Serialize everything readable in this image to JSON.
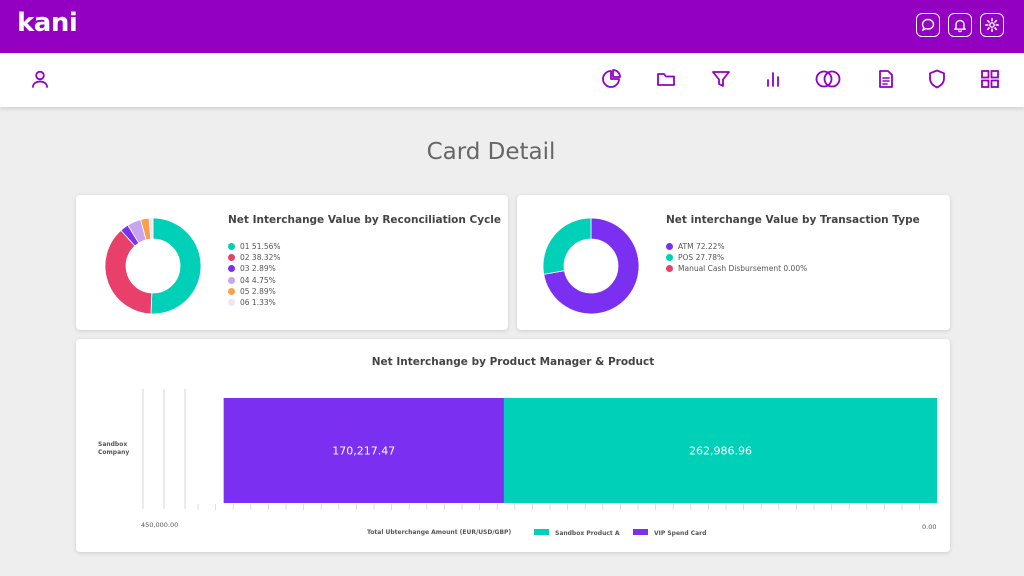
{
  "app": {
    "logo": "kani",
    "top_icons": [
      "chat-icon",
      "bell-icon",
      "gear-icon"
    ],
    "nav_icons": [
      "user-icon",
      "pie-chart-icon",
      "folder-icon",
      "filter-icon",
      "bar-chart-icon",
      "cards-icon",
      "document-icon",
      "shield-icon",
      "grid-icon"
    ]
  },
  "page": {
    "title": "Card Detail"
  },
  "colors": {
    "brand": "#9400c2",
    "teal": "#00d0b7",
    "purple": "#7b2ff0",
    "pink": "#e83f6b",
    "lavender": "#c9a4ef",
    "orange": "#f8a14a",
    "pale": "#efe3f7"
  },
  "cycle_chart": {
    "title": "Net Interchange Value by Reconciliation Cycle",
    "legend": [
      {
        "label": "01 51.56%",
        "color": "#00d0b7"
      },
      {
        "label": "02 38.32%",
        "color": "#e83f6b"
      },
      {
        "label": "03 2.89%",
        "color": "#7b2ff0"
      },
      {
        "label": "04 4.75%",
        "color": "#c9a4ef"
      },
      {
        "label": "05 2.89%",
        "color": "#f8a14a"
      },
      {
        "label": "06 1.33%",
        "color": "#efe3f7"
      }
    ]
  },
  "type_chart": {
    "title": "Net interchange Value by Transaction Type",
    "legend": [
      {
        "label": "ATM 72.22%",
        "color": "#7b2ff0"
      },
      {
        "label": "POS 27.78%",
        "color": "#00d0b7"
      },
      {
        "label": "Manual Cash Disbursement 0.00%",
        "color": "#e83f6b"
      }
    ]
  },
  "product_chart": {
    "title": "Net Interchange by Product Manager & Product",
    "category_line1": "Sandbox",
    "category_line2": "Company",
    "x_min_label": "450,000.00",
    "x_max_label": "0.00",
    "x_axis_label": "Total Ubterchange Amount (EUR/USD/GBP)"
  },
  "chart_data": [
    {
      "type": "pie",
      "title": "Net Interchange Value by Reconciliation Cycle",
      "labels": [
        "01",
        "02",
        "03",
        "04",
        "05",
        "06"
      ],
      "values": [
        51.56,
        38.32,
        2.89,
        4.75,
        2.89,
        1.33
      ],
      "colors": [
        "#00d0b7",
        "#e83f6b",
        "#7b2ff0",
        "#c9a4ef",
        "#f8a14a",
        "#efe3f7"
      ],
      "donut": true,
      "legend": "right"
    },
    {
      "type": "pie",
      "title": "Net interchange Value by Transaction Type",
      "labels": [
        "ATM",
        "POS",
        "Manual Cash Disbursement"
      ],
      "values": [
        72.22,
        27.78,
        0.0
      ],
      "colors": [
        "#7b2ff0",
        "#00d0b7",
        "#e83f6b"
      ],
      "donut": true,
      "legend": "right"
    },
    {
      "type": "bar",
      "orientation": "horizontal",
      "stacked": true,
      "title": "Net Interchange by Product Manager & Product",
      "categories": [
        "Sandbox Company"
      ],
      "series": [
        {
          "name": "Sandbox Product A",
          "values": [
            262986.96
          ],
          "color": "#00d0b7",
          "label": "262,986.96"
        },
        {
          "name": "VIP Spend Card",
          "values": [
            170217.47
          ],
          "color": "#7b2ff0",
          "label": "170,217.47"
        }
      ],
      "xlabel": "Total Ubterchange Amount (EUR/USD/GBP)",
      "xlim": [
        450000,
        0
      ],
      "legend": "bottom"
    }
  ]
}
